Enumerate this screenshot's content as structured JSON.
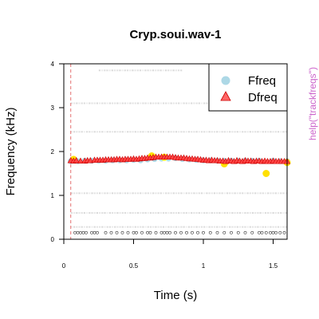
{
  "chart_data": {
    "type": "scatter",
    "title": "Cryp.soui.wav-1",
    "xlabel": "Time (s)",
    "ylabel": "Frequency (kHz)",
    "side_note": "help(\"trackfreqs\")",
    "xlim": [
      0,
      1.6
    ],
    "ylim": [
      0,
      4
    ],
    "x_ticks": [
      0,
      0.5,
      1,
      1.5
    ],
    "x_tick_labels": [
      "0",
      "0.5",
      "1",
      "1.5"
    ],
    "y_ticks": [
      0,
      1,
      2,
      3,
      4
    ],
    "y_tick_labels": [
      "0",
      "1",
      "2",
      "3",
      "4"
    ],
    "grid": false,
    "legend_position": "top-right",
    "selection_bounds": [
      0.05,
      1.6
    ],
    "series": [
      {
        "name": "Ffreq",
        "marker": "circle",
        "color": "#add8e6",
        "x": [
          0.05,
          0.1,
          0.15,
          0.2,
          0.25,
          0.3,
          0.35,
          0.4,
          0.45,
          0.5,
          0.55,
          0.6,
          0.65,
          0.7,
          0.75,
          0.8,
          0.85,
          0.9,
          0.95,
          1.0,
          1.05,
          1.1,
          1.15,
          1.2,
          1.25,
          1.3,
          1.35,
          1.4,
          1.45,
          1.5,
          1.55,
          1.6
        ],
        "y": [
          1.78,
          1.78,
          1.79,
          1.79,
          1.79,
          1.79,
          1.8,
          1.8,
          1.8,
          1.81,
          1.8,
          1.82,
          1.83,
          1.84,
          1.84,
          1.85,
          1.83,
          1.82,
          1.81,
          1.8,
          1.8,
          1.79,
          1.79,
          1.79,
          1.79,
          1.79,
          1.79,
          1.79,
          1.5,
          1.79,
          1.78,
          1.78
        ]
      },
      {
        "name": "Dfreq",
        "marker": "triangle",
        "color": "#ff3333",
        "x": [
          0.05,
          0.07,
          0.09,
          0.12,
          0.15,
          0.17,
          0.19,
          0.22,
          0.24,
          0.26,
          0.28,
          0.3,
          0.32,
          0.34,
          0.36,
          0.38,
          0.4,
          0.42,
          0.44,
          0.46,
          0.48,
          0.5,
          0.52,
          0.54,
          0.56,
          0.58,
          0.6,
          0.62,
          0.64,
          0.66,
          0.68,
          0.7,
          0.72,
          0.74,
          0.76,
          0.78,
          0.8,
          0.82,
          0.84,
          0.86,
          0.88,
          0.9,
          0.92,
          0.94,
          0.96,
          0.98,
          1.0,
          1.02,
          1.04,
          1.06,
          1.08,
          1.1,
          1.12,
          1.14,
          1.16,
          1.18,
          1.2,
          1.22,
          1.24,
          1.26,
          1.28,
          1.3,
          1.32,
          1.34,
          1.36,
          1.38,
          1.4,
          1.42,
          1.44,
          1.46,
          1.48,
          1.5,
          1.52,
          1.54,
          1.56,
          1.58,
          1.6
        ],
        "y": [
          1.79,
          1.78,
          1.79,
          1.78,
          1.78,
          1.79,
          1.79,
          1.8,
          1.8,
          1.8,
          1.8,
          1.81,
          1.81,
          1.81,
          1.81,
          1.82,
          1.82,
          1.81,
          1.82,
          1.82,
          1.82,
          1.83,
          1.82,
          1.83,
          1.84,
          1.84,
          1.85,
          1.85,
          1.86,
          1.87,
          1.87,
          1.87,
          1.87,
          1.87,
          1.87,
          1.87,
          1.86,
          1.85,
          1.85,
          1.85,
          1.84,
          1.83,
          1.83,
          1.82,
          1.82,
          1.81,
          1.8,
          1.8,
          1.79,
          1.8,
          1.79,
          1.79,
          1.78,
          1.78,
          1.77,
          1.79,
          1.78,
          1.77,
          1.79,
          1.78,
          1.77,
          1.79,
          1.78,
          1.78,
          1.77,
          1.78,
          1.78,
          1.77,
          1.78,
          1.77,
          1.77,
          1.78,
          1.77,
          1.77,
          1.77,
          1.77,
          1.77
        ]
      }
    ],
    "highlights": {
      "color": "#ffe000",
      "x": [
        0.07,
        0.63,
        0.72,
        1.15,
        1.45,
        1.6
      ],
      "y": [
        1.82,
        1.9,
        1.87,
        1.72,
        1.5,
        1.75
      ]
    },
    "spectrogram_bands": [
      {
        "y": 3.85,
        "x0": 0.25,
        "x1": 0.85
      },
      {
        "y": 3.1,
        "x0": 0.05,
        "x1": 1.6
      },
      {
        "y": 2.45,
        "x0": 0.05,
        "x1": 1.6
      },
      {
        "y": 1.05,
        "x0": 0.05,
        "x1": 1.6
      },
      {
        "y": 0.6,
        "x0": 0.05,
        "x1": 1.6
      },
      {
        "y": 0.28,
        "x0": 0.05,
        "x1": 1.6
      }
    ],
    "baseline_points": {
      "y": 0.15,
      "x": [
        0.08,
        0.1,
        0.12,
        0.14,
        0.16,
        0.2,
        0.22,
        0.24,
        0.3,
        0.34,
        0.38,
        0.42,
        0.46,
        0.5,
        0.52,
        0.56,
        0.6,
        0.62,
        0.66,
        0.7,
        0.72,
        0.74,
        0.76,
        0.8,
        0.84,
        0.88,
        0.92,
        0.96,
        1.0,
        1.05,
        1.1,
        1.15,
        1.2,
        1.25,
        1.3,
        1.35,
        1.4,
        1.42,
        1.45,
        1.48,
        1.5,
        1.52,
        1.55,
        1.58
      ]
    }
  }
}
